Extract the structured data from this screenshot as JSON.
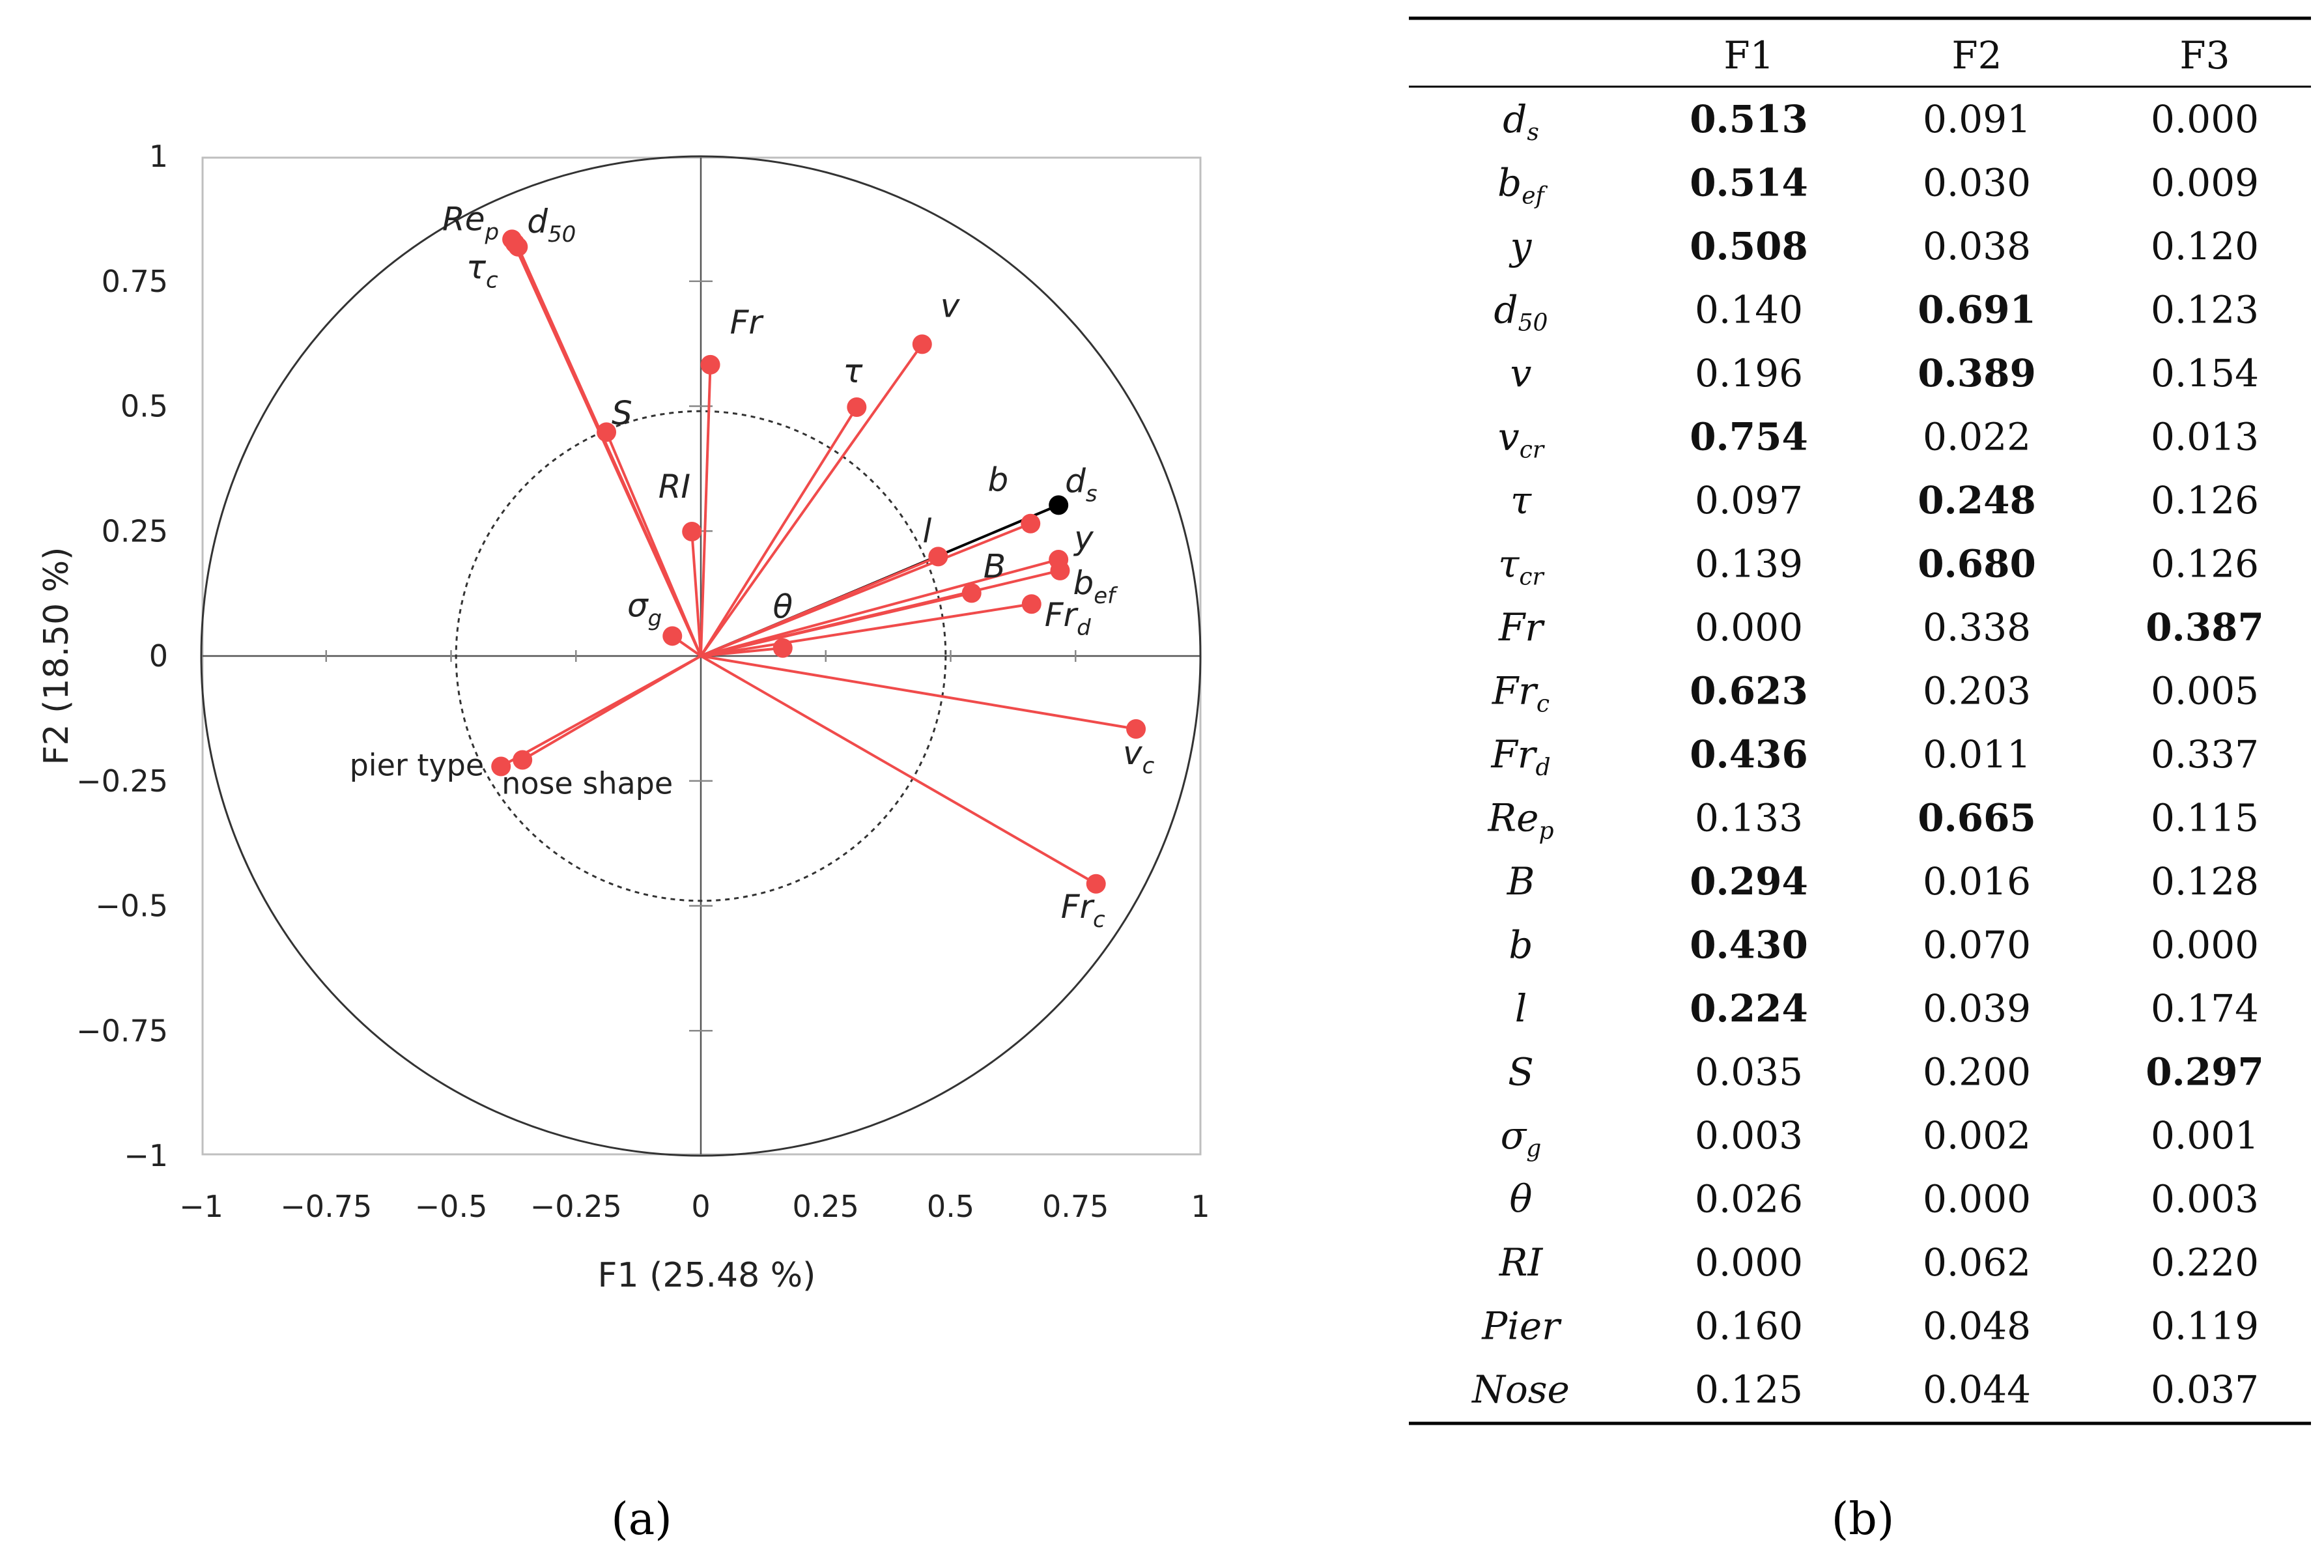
{
  "chart_data": [
    {
      "type": "scatter",
      "subtype": "correlation-circle",
      "panel_label": "(a)",
      "xlabel": "F1 (25.48 %)",
      "ylabel": "F2 (18.50 %)",
      "xlim": [
        -1,
        1
      ],
      "ylim": [
        -1,
        1
      ],
      "x_ticks": [
        "−1",
        "−0.75",
        "−0.5",
        "−0.25",
        "0",
        "0.25",
        "0.5",
        "0.75",
        "1"
      ],
      "y_ticks": [
        "1",
        "0.75",
        "0.5",
        "0.25",
        "0",
        "−0.25",
        "−0.5",
        "−0.75",
        "−1"
      ],
      "inner_circle_radius": 0.49,
      "colors": {
        "active": "#f04b4b",
        "supplementary": "#000000",
        "circle": "#333333"
      },
      "variables": [
        {
          "base": "d",
          "sub": "s",
          "x": 0.716,
          "y": 0.302,
          "color": "#000000"
        },
        {
          "base": "Re",
          "sub": "p",
          "x": -0.378,
          "y": 0.834,
          "color": "#f04b4b"
        },
        {
          "base": "d",
          "sub": "50",
          "x": -0.366,
          "y": 0.819,
          "color": "#f04b4b"
        },
        {
          "base": "τ",
          "sub": "c",
          "x": -0.372,
          "y": 0.826,
          "color": "#f04b4b"
        },
        {
          "base": "S",
          "sub": "",
          "x": -0.189,
          "y": 0.448,
          "color": "#f04b4b"
        },
        {
          "base": "Fr",
          "sub": "",
          "x": 0.019,
          "y": 0.583,
          "color": "#f04b4b"
        },
        {
          "base": "v",
          "sub": "",
          "x": 0.443,
          "y": 0.624,
          "color": "#f04b4b"
        },
        {
          "base": "τ",
          "sub": "",
          "x": 0.312,
          "y": 0.498,
          "color": "#f04b4b"
        },
        {
          "base": "RI",
          "sub": "",
          "x": -0.018,
          "y": 0.249,
          "color": "#f04b4b"
        },
        {
          "base": "b",
          "sub": "",
          "x": 0.66,
          "y": 0.265,
          "color": "#f04b4b"
        },
        {
          "base": "l",
          "sub": "",
          "x": 0.475,
          "y": 0.199,
          "color": "#f04b4b"
        },
        {
          "base": "y",
          "sub": "",
          "x": 0.716,
          "y": 0.193,
          "color": "#f04b4b"
        },
        {
          "base": "b",
          "sub": "ef",
          "x": 0.719,
          "y": 0.171,
          "color": "#f04b4b"
        },
        {
          "base": "B",
          "sub": "",
          "x": 0.542,
          "y": 0.126,
          "color": "#f04b4b"
        },
        {
          "base": "Fr",
          "sub": "d",
          "x": 0.662,
          "y": 0.104,
          "color": "#f04b4b"
        },
        {
          "base": "θ",
          "sub": "",
          "x": 0.164,
          "y": 0.016,
          "color": "#f04b4b"
        },
        {
          "base": "σ",
          "sub": "g",
          "x": -0.057,
          "y": 0.04,
          "color": "#f04b4b"
        },
        {
          "base": "v",
          "sub": "c",
          "x": 0.871,
          "y": -0.146,
          "color": "#f04b4b"
        },
        {
          "base": "Fr",
          "sub": "c",
          "x": 0.791,
          "y": -0.456,
          "color": "#f04b4b"
        },
        {
          "base": "pier type",
          "sub": "",
          "x": -0.4,
          "y": -0.221,
          "color": "#f04b4b"
        },
        {
          "base": "nose shape",
          "sub": "",
          "x": -0.357,
          "y": -0.208,
          "color": "#f04b4b"
        }
      ]
    },
    {
      "type": "table",
      "panel_label": "(b)",
      "columns": [
        "",
        "F1",
        "F2",
        "F3"
      ],
      "rows": [
        {
          "base": "d",
          "sub": "s",
          "values": [
            "0.513",
            "0.091",
            "0.000"
          ],
          "bold": [
            true,
            false,
            false
          ]
        },
        {
          "base": "b",
          "sub": "ef",
          "values": [
            "0.514",
            "0.030",
            "0.009"
          ],
          "bold": [
            true,
            false,
            false
          ]
        },
        {
          "base": "y",
          "sub": "",
          "values": [
            "0.508",
            "0.038",
            "0.120"
          ],
          "bold": [
            true,
            false,
            false
          ]
        },
        {
          "base": "d",
          "sub": "50",
          "values": [
            "0.140",
            "0.691",
            "0.123"
          ],
          "bold": [
            false,
            true,
            false
          ]
        },
        {
          "base": "v",
          "sub": "",
          "values": [
            "0.196",
            "0.389",
            "0.154"
          ],
          "bold": [
            false,
            true,
            false
          ]
        },
        {
          "base": "v",
          "sub": "cr",
          "values": [
            "0.754",
            "0.022",
            "0.013"
          ],
          "bold": [
            true,
            false,
            false
          ]
        },
        {
          "base": "τ",
          "sub": "",
          "values": [
            "0.097",
            "0.248",
            "0.126"
          ],
          "bold": [
            false,
            true,
            false
          ]
        },
        {
          "base": "τ",
          "sub": "cr",
          "values": [
            "0.139",
            "0.680",
            "0.126"
          ],
          "bold": [
            false,
            true,
            false
          ]
        },
        {
          "base": "Fr",
          "sub": "",
          "values": [
            "0.000",
            "0.338",
            "0.387"
          ],
          "bold": [
            false,
            false,
            true
          ]
        },
        {
          "base": "Fr",
          "sub": "c",
          "values": [
            "0.623",
            "0.203",
            "0.005"
          ],
          "bold": [
            true,
            false,
            false
          ]
        },
        {
          "base": "Fr",
          "sub": "d",
          "values": [
            "0.436",
            "0.011",
            "0.337"
          ],
          "bold": [
            true,
            false,
            false
          ]
        },
        {
          "base": "Re",
          "sub": "p",
          "values": [
            "0.133",
            "0.665",
            "0.115"
          ],
          "bold": [
            false,
            true,
            false
          ]
        },
        {
          "base": "B",
          "sub": "",
          "values": [
            "0.294",
            "0.016",
            "0.128"
          ],
          "bold": [
            true,
            false,
            false
          ]
        },
        {
          "base": "b",
          "sub": "",
          "values": [
            "0.430",
            "0.070",
            "0.000"
          ],
          "bold": [
            true,
            false,
            false
          ]
        },
        {
          "base": "l",
          "sub": "",
          "values": [
            "0.224",
            "0.039",
            "0.174"
          ],
          "bold": [
            true,
            false,
            false
          ]
        },
        {
          "base": "S",
          "sub": "",
          "values": [
            "0.035",
            "0.200",
            "0.297"
          ],
          "bold": [
            false,
            false,
            true
          ]
        },
        {
          "base": "σ",
          "sub": "g",
          "values": [
            "0.003",
            "0.002",
            "0.001"
          ],
          "bold": [
            false,
            false,
            false
          ]
        },
        {
          "base": "θ",
          "sub": "",
          "values": [
            "0.026",
            "0.000",
            "0.003"
          ],
          "bold": [
            false,
            false,
            false
          ]
        },
        {
          "base": "RI",
          "sub": "",
          "values": [
            "0.000",
            "0.062",
            "0.220"
          ],
          "bold": [
            false,
            false,
            false
          ]
        },
        {
          "base": "Pier",
          "sub": "",
          "values": [
            "0.160",
            "0.048",
            "0.119"
          ],
          "bold": [
            false,
            false,
            false
          ]
        },
        {
          "base": "Nose",
          "sub": "",
          "values": [
            "0.125",
            "0.044",
            "0.037"
          ],
          "bold": [
            false,
            false,
            false
          ]
        }
      ]
    }
  ]
}
